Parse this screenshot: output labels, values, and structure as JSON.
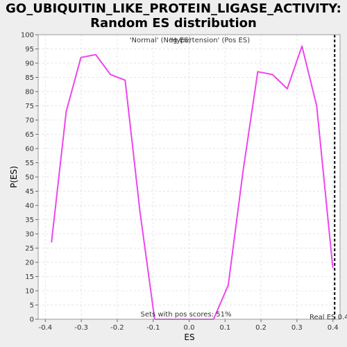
{
  "chart_data": {
    "type": "line",
    "title_line1": "GO_UBIQUITIN_LIKE_PROTEIN_LIGASE_ACTIVITY:",
    "title_line2": "Random ES distribution",
    "xlabel": "ES",
    "ylabel": "P(ES)",
    "xlim": [
      -0.42,
      0.42
    ],
    "ylim": [
      0,
      100
    ],
    "x_ticks": [
      -0.4,
      -0.3,
      -0.2,
      -0.1,
      0.0,
      0.1,
      0.2,
      0.3,
      0.4
    ],
    "x_tick_labels": [
      "-0.4",
      "-0.3",
      "-0.2",
      "-0.1",
      "0.0",
      "0.1",
      "0.2",
      "0.3",
      "0.4"
    ],
    "y_ticks": [
      0,
      5,
      10,
      15,
      20,
      25,
      30,
      35,
      40,
      45,
      50,
      55,
      60,
      65,
      70,
      75,
      80,
      85,
      90,
      95,
      100
    ],
    "grid": true,
    "legend": [
      {
        "label": "'Normal' (Neg ES)",
        "color": "#3333cc"
      },
      {
        "label": "'Hypertension' (Pos ES)",
        "color": "#cc3333"
      }
    ],
    "series": [
      {
        "color": "#ee44ee",
        "x": [
          -0.383,
          -0.342,
          -0.301,
          -0.26,
          -0.219,
          -0.178,
          -0.137,
          -0.096,
          -0.055,
          -0.014,
          0.027,
          0.068,
          0.109,
          0.15,
          0.191,
          0.232,
          0.273,
          0.314,
          0.355,
          0.4
        ],
        "y": [
          27,
          73,
          92,
          93,
          86,
          84,
          38,
          0,
          0,
          0,
          0,
          0,
          12,
          52,
          87,
          86,
          81,
          96,
          75,
          18
        ]
      }
    ],
    "real_es": {
      "value": 0.405,
      "label": "Real ES 0.4"
    },
    "annotation": "Sets with pos scores: 51%"
  }
}
